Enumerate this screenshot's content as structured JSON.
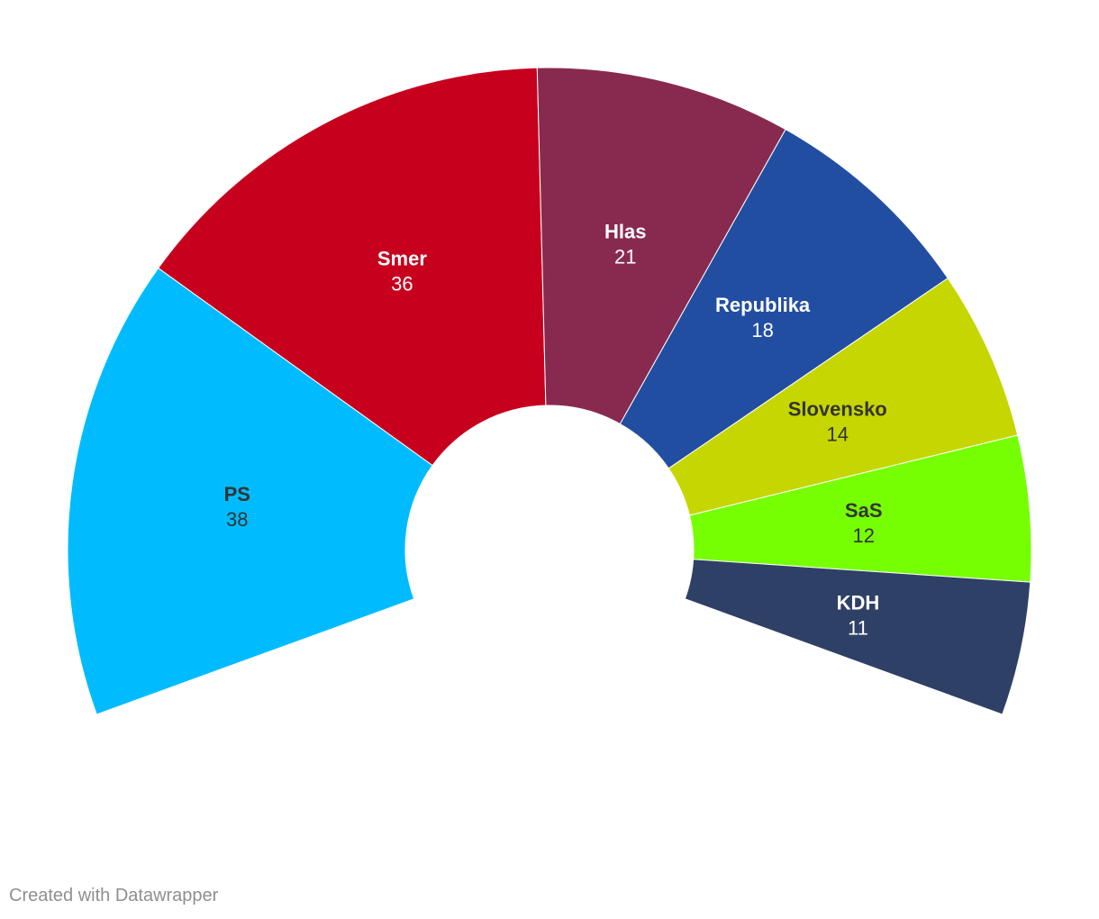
{
  "chart_data": {
    "type": "pie",
    "variant": "parliament-semicircle",
    "total_seats": 150,
    "start_angle_deg": -110,
    "end_angle_deg": 110,
    "series": [
      {
        "name": "PS",
        "value": 38,
        "color": "#00bcff",
        "label_color": "#333333"
      },
      {
        "name": "Smer",
        "value": 36,
        "color": "#c7001e",
        "label_color": "#ffffff"
      },
      {
        "name": "Hlas",
        "value": 21,
        "color": "#882a50",
        "label_color": "#ffffff"
      },
      {
        "name": "Republika",
        "value": 18,
        "color": "#224ea2",
        "label_color": "#ffffff"
      },
      {
        "name": "Slovensko",
        "value": 14,
        "color": "#c6d600",
        "label_color": "#333333"
      },
      {
        "name": "SaS",
        "value": 12,
        "color": "#76ff03",
        "label_color": "#333333"
      },
      {
        "name": "KDH",
        "value": 11,
        "color": "#2f4066",
        "label_color": "#ffffff"
      }
    ]
  },
  "footer": {
    "credit": "Created with Datawrapper"
  }
}
